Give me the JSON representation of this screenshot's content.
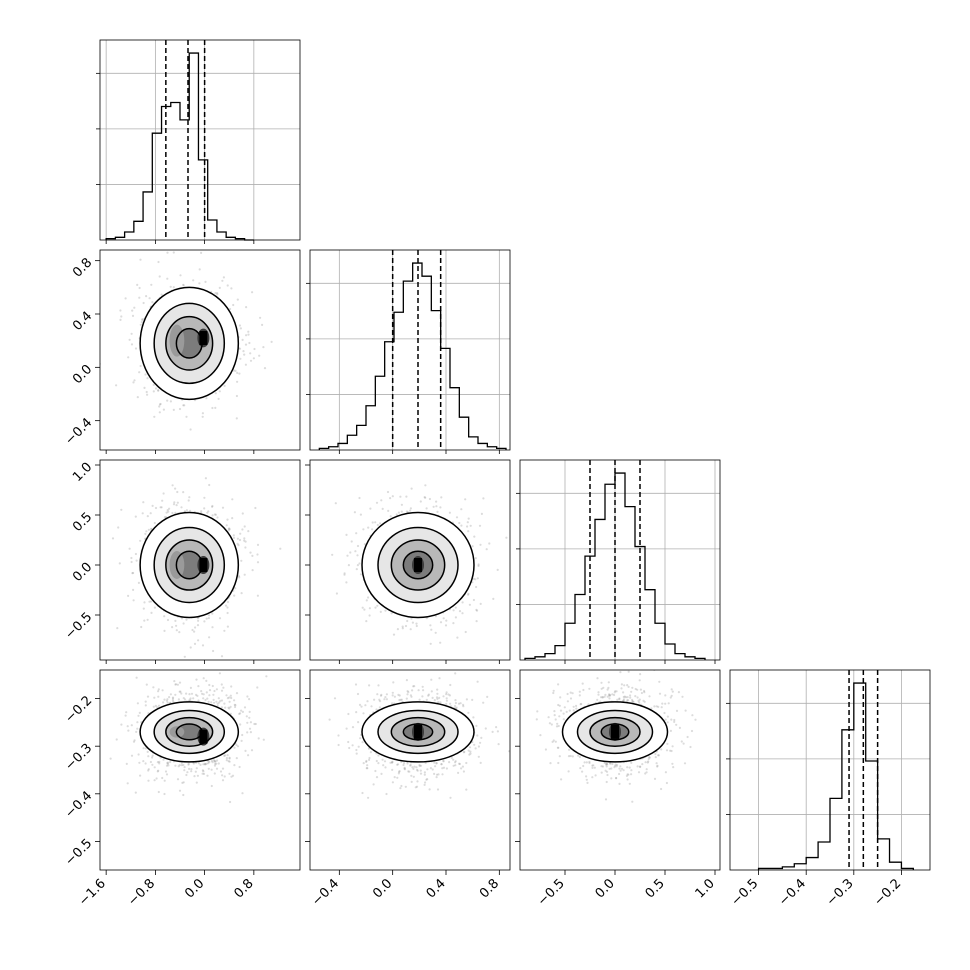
{
  "chart_data": {
    "type": "corner",
    "parameters": 4,
    "grid": true,
    "axes": [
      {
        "range": [
          -1.7,
          1.55
        ],
        "ticks": [
          -1.6,
          -0.8,
          0.0,
          0.8
        ],
        "tick_labels": [
          "−1.6",
          "−0.8",
          "0.0",
          "0.8"
        ]
      },
      {
        "range": [
          -0.62,
          0.88
        ],
        "ticks": [
          -0.4,
          0.0,
          0.4,
          0.8
        ],
        "tick_labels": [
          "−0.4",
          "0.0",
          "0.4",
          "0.8"
        ]
      },
      {
        "range": [
          -0.95,
          1.05
        ],
        "ticks": [
          -0.5,
          0.0,
          0.5,
          1.0
        ],
        "tick_labels": [
          "−0.5",
          "0.0",
          "0.5",
          "1.0"
        ]
      },
      {
        "range": [
          -0.56,
          -0.14
        ],
        "ticks": [
          -0.5,
          -0.4,
          -0.3,
          -0.2
        ],
        "tick_labels": [
          "−0.5",
          "−0.4",
          "−0.3",
          "−0.2"
        ]
      }
    ],
    "marginals": [
      {
        "bin_edges": [
          -1.6,
          -1.45,
          -1.3,
          -1.15,
          -1.0,
          -0.85,
          -0.7,
          -0.55,
          -0.4,
          -0.25,
          -0.1,
          0.05,
          0.2,
          0.35,
          0.5,
          0.65,
          0.8
        ],
        "counts": [
          1,
          2,
          6,
          14,
          36,
          80,
          100,
          103,
          90,
          140,
          60,
          15,
          6,
          2,
          1,
          0
        ],
        "quantiles": [
          -0.63,
          -0.27,
          0.0
        ]
      },
      {
        "bin_edges": [
          -0.55,
          -0.48,
          -0.41,
          -0.34,
          -0.27,
          -0.2,
          -0.13,
          -0.06,
          0.01,
          0.08,
          0.15,
          0.22,
          0.29,
          0.36,
          0.43,
          0.5,
          0.57,
          0.64,
          0.71,
          0.78,
          0.85
        ],
        "counts": [
          1,
          2,
          4,
          9,
          15,
          27,
          45,
          66,
          84,
          103,
          114,
          106,
          85,
          62,
          38,
          20,
          8,
          4,
          2,
          1
        ],
        "quantiles": [
          0.0,
          0.19,
          0.36
        ]
      },
      {
        "bin_edges": [
          -0.9,
          -0.8,
          -0.7,
          -0.6,
          -0.5,
          -0.4,
          -0.3,
          -0.2,
          -0.1,
          0.0,
          0.1,
          0.2,
          0.3,
          0.4,
          0.5,
          0.6,
          0.7,
          0.8,
          0.9
        ],
        "counts": [
          1,
          2,
          4,
          9,
          23,
          41,
          65,
          88,
          110,
          117,
          96,
          71,
          44,
          23,
          10,
          4,
          2,
          1
        ],
        "quantiles": [
          -0.25,
          0.0,
          0.25
        ]
      },
      {
        "bin_edges": [
          -0.5,
          -0.475,
          -0.45,
          -0.425,
          -0.4,
          -0.375,
          -0.35,
          -0.325,
          -0.3,
          -0.275,
          -0.25,
          -0.225,
          -0.2,
          -0.175
        ],
        "counts": [
          1,
          1,
          2,
          4,
          8,
          18,
          46,
          90,
          120,
          70,
          20,
          5,
          1
        ],
        "quantiles": [
          -0.31,
          -0.28,
          -0.25
        ]
      }
    ],
    "pairs": [
      {
        "row": 1,
        "col": 0,
        "center": [
          -0.25,
          0.18
        ],
        "sigma": [
          0.38,
          0.2
        ],
        "mode": [
          -0.02,
          0.22
        ],
        "blobs": [
          {
            "x": -0.45,
            "y": 0.2,
            "w": 0.12,
            "h": 0.12
          }
        ]
      },
      {
        "row": 2,
        "col": 0,
        "center": [
          -0.25,
          0.0
        ],
        "sigma": [
          0.38,
          0.25
        ],
        "mode": [
          -0.02,
          0.0
        ],
        "blobs": [
          {
            "x": -0.45,
            "y": 0.0,
            "w": 0.12,
            "h": 0.14
          }
        ]
      },
      {
        "row": 2,
        "col": 1,
        "center": [
          0.19,
          0.0
        ],
        "sigma": [
          0.2,
          0.25
        ],
        "mode": [
          0.19,
          0.0
        ],
        "blobs": []
      },
      {
        "row": 3,
        "col": 0,
        "center": [
          -0.25,
          -0.27
        ],
        "sigma": [
          0.38,
          0.03
        ],
        "mode": [
          -0.02,
          -0.28
        ],
        "blobs": [
          {
            "x": -0.45,
            "y": -0.27,
            "w": 0.12,
            "h": 0.012
          }
        ]
      },
      {
        "row": 3,
        "col": 1,
        "center": [
          0.19,
          -0.27
        ],
        "sigma": [
          0.2,
          0.03
        ],
        "mode": [
          0.19,
          -0.27
        ],
        "blobs": []
      },
      {
        "row": 3,
        "col": 2,
        "center": [
          0.0,
          -0.27
        ],
        "sigma": [
          0.25,
          0.03
        ],
        "mode": [
          0.0,
          -0.27
        ],
        "blobs": []
      }
    ]
  }
}
